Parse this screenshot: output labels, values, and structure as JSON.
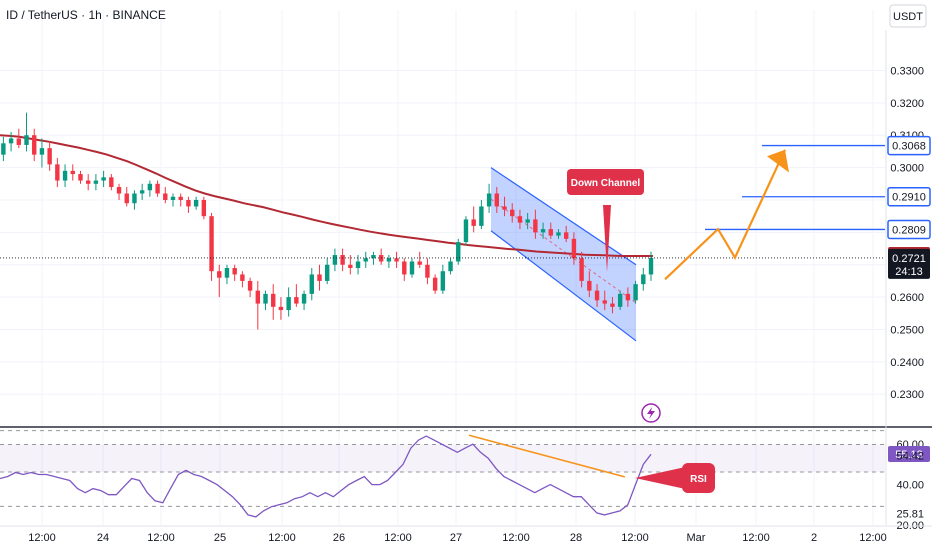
{
  "header": {
    "title": "ID / TetherUS · 1h · BINANCE",
    "currency": "USDT"
  },
  "colors": {
    "up": "#089981",
    "down": "#f23645",
    "ma": "#b22833",
    "channel_line": "#2962ff",
    "channel_fill": "#2962ff",
    "projection": "#f7931a",
    "level_line": "#2962ff",
    "rsi_line": "#7e57c2",
    "rsi_trend": "#f7931a",
    "annotation": "#e0314b"
  },
  "chart_data": [
    {
      "type": "candlestick",
      "title": "ID / TetherUS · 1h · BINANCE",
      "ylim": [
        0.2205,
        0.3425
      ],
      "y_ticks": [
        0.23,
        0.24,
        0.25,
        0.26,
        0.27,
        0.28,
        0.29,
        0.3,
        0.31,
        0.32,
        0.33
      ],
      "y_tick_labels": [
        "0.2300",
        "0.2400",
        "0.2500",
        "0.2600",
        "0.2700",
        "0.2800",
        "0.2900",
        "0.3000",
        "0.3100",
        "0.3200",
        "0.3300"
      ],
      "x_ticks": [
        "12:00",
        "24",
        "12:00",
        "25",
        "12:00",
        "26",
        "12:00",
        "27",
        "12:00",
        "28",
        "12:00",
        "Mar",
        "12:00",
        "2",
        "12:00"
      ],
      "grid": true,
      "ohlc": [
        [
          0.304,
          0.3095,
          0.302,
          0.3075
        ],
        [
          0.3075,
          0.311,
          0.305,
          0.309
        ],
        [
          0.309,
          0.312,
          0.306,
          0.307
        ],
        [
          0.307,
          0.317,
          0.305,
          0.31
        ],
        [
          0.31,
          0.312,
          0.302,
          0.304
        ],
        [
          0.304,
          0.309,
          0.3,
          0.306
        ],
        [
          0.306,
          0.308,
          0.299,
          0.301
        ],
        [
          0.301,
          0.303,
          0.294,
          0.296
        ],
        [
          0.296,
          0.301,
          0.294,
          0.299
        ],
        [
          0.299,
          0.301,
          0.296,
          0.298
        ],
        [
          0.298,
          0.299,
          0.295,
          0.296
        ],
        [
          0.296,
          0.298,
          0.293,
          0.295
        ],
        [
          0.295,
          0.298,
          0.293,
          0.296
        ],
        [
          0.296,
          0.299,
          0.294,
          0.297
        ],
        [
          0.297,
          0.298,
          0.293,
          0.294
        ],
        [
          0.294,
          0.295,
          0.29,
          0.292
        ],
        [
          0.292,
          0.294,
          0.288,
          0.289
        ],
        [
          0.289,
          0.293,
          0.287,
          0.292
        ],
        [
          0.292,
          0.295,
          0.29,
          0.293
        ],
        [
          0.293,
          0.296,
          0.291,
          0.295
        ],
        [
          0.295,
          0.296,
          0.291,
          0.292
        ],
        [
          0.292,
          0.294,
          0.289,
          0.29
        ],
        [
          0.29,
          0.292,
          0.288,
          0.291
        ],
        [
          0.291,
          0.292,
          0.288,
          0.29
        ],
        [
          0.29,
          0.291,
          0.286,
          0.288
        ],
        [
          0.288,
          0.291,
          0.287,
          0.29
        ],
        [
          0.29,
          0.291,
          0.284,
          0.285
        ],
        [
          0.285,
          0.286,
          0.265,
          0.268
        ],
        [
          0.268,
          0.27,
          0.26,
          0.266
        ],
        [
          0.266,
          0.27,
          0.264,
          0.269
        ],
        [
          0.269,
          0.27,
          0.265,
          0.267
        ],
        [
          0.267,
          0.268,
          0.263,
          0.265
        ],
        [
          0.265,
          0.266,
          0.26,
          0.262
        ],
        [
          0.262,
          0.265,
          0.25,
          0.258
        ],
        [
          0.258,
          0.262,
          0.256,
          0.261
        ],
        [
          0.261,
          0.264,
          0.253,
          0.257
        ],
        [
          0.257,
          0.26,
          0.253,
          0.256
        ],
        [
          0.256,
          0.263,
          0.254,
          0.26
        ],
        [
          0.26,
          0.264,
          0.257,
          0.258
        ],
        [
          0.258,
          0.262,
          0.256,
          0.261
        ],
        [
          0.261,
          0.269,
          0.259,
          0.267
        ],
        [
          0.267,
          0.27,
          0.262,
          0.265
        ],
        [
          0.265,
          0.272,
          0.264,
          0.27
        ],
        [
          0.27,
          0.275,
          0.268,
          0.273
        ],
        [
          0.273,
          0.275,
          0.268,
          0.27
        ],
        [
          0.27,
          0.273,
          0.267,
          0.269
        ],
        [
          0.269,
          0.273,
          0.267,
          0.271
        ],
        [
          0.271,
          0.274,
          0.269,
          0.272
        ],
        [
          0.272,
          0.274,
          0.27,
          0.273
        ],
        [
          0.273,
          0.275,
          0.27,
          0.271
        ],
        [
          0.271,
          0.273,
          0.269,
          0.272
        ],
        [
          0.272,
          0.274,
          0.269,
          0.271
        ],
        [
          0.271,
          0.272,
          0.265,
          0.267
        ],
        [
          0.267,
          0.272,
          0.266,
          0.271
        ],
        [
          0.271,
          0.274,
          0.269,
          0.27
        ],
        [
          0.27,
          0.272,
          0.264,
          0.266
        ],
        [
          0.266,
          0.267,
          0.261,
          0.262
        ],
        [
          0.262,
          0.27,
          0.261,
          0.268
        ],
        [
          0.268,
          0.272,
          0.267,
          0.271
        ],
        [
          0.271,
          0.278,
          0.27,
          0.277
        ],
        [
          0.277,
          0.285,
          0.276,
          0.284
        ],
        [
          0.284,
          0.288,
          0.28,
          0.282
        ],
        [
          0.282,
          0.29,
          0.281,
          0.288
        ],
        [
          0.288,
          0.295,
          0.286,
          0.292
        ],
        [
          0.292,
          0.294,
          0.286,
          0.288
        ],
        [
          0.288,
          0.291,
          0.285,
          0.287
        ],
        [
          0.287,
          0.289,
          0.283,
          0.285
        ],
        [
          0.285,
          0.287,
          0.281,
          0.283
        ],
        [
          0.283,
          0.286,
          0.281,
          0.284
        ],
        [
          0.284,
          0.287,
          0.278,
          0.28
        ],
        [
          0.28,
          0.283,
          0.278,
          0.281
        ],
        [
          0.281,
          0.283,
          0.278,
          0.279
        ],
        [
          0.279,
          0.281,
          0.278,
          0.28
        ],
        [
          0.28,
          0.282,
          0.277,
          0.278
        ],
        [
          0.278,
          0.28,
          0.27,
          0.272
        ],
        [
          0.272,
          0.274,
          0.263,
          0.265
        ],
        [
          0.265,
          0.268,
          0.26,
          0.262
        ],
        [
          0.262,
          0.264,
          0.257,
          0.259
        ],
        [
          0.259,
          0.262,
          0.256,
          0.258
        ],
        [
          0.258,
          0.26,
          0.255,
          0.257
        ],
        [
          0.257,
          0.262,
          0.256,
          0.261
        ],
        [
          0.261,
          0.263,
          0.257,
          0.259
        ],
        [
          0.259,
          0.265,
          0.258,
          0.264
        ],
        [
          0.264,
          0.269,
          0.262,
          0.267
        ],
        [
          0.267,
          0.274,
          0.265,
          0.2721
        ]
      ],
      "ma_series": {
        "name": "",
        "values": [
          0.31,
          0.3098,
          0.3095,
          0.309,
          0.3085,
          0.308,
          0.3074,
          0.3068,
          0.3062,
          0.3055,
          0.3048,
          0.304,
          0.303,
          0.302,
          0.3008,
          0.2995,
          0.2982,
          0.2968,
          0.2955,
          0.2942,
          0.293,
          0.292,
          0.2912,
          0.2905,
          0.2898,
          0.289,
          0.2884,
          0.2878,
          0.287,
          0.2862,
          0.2855,
          0.2848,
          0.284,
          0.2833,
          0.2826,
          0.282,
          0.2814,
          0.2808,
          0.2802,
          0.2797,
          0.2792,
          0.2788,
          0.2784,
          0.278,
          0.2776,
          0.2772,
          0.2768,
          0.2765,
          0.2761,
          0.2758,
          0.2755,
          0.2752,
          0.2749,
          0.2747,
          0.2744,
          0.2741,
          0.2739,
          0.2737,
          0.2735,
          0.2733,
          0.2731,
          0.273,
          0.2729,
          0.2728,
          0.2727,
          0.2727,
          0.2727,
          0.2727
        ]
      },
      "levels": [
        {
          "value": 0.3068,
          "label": "0.3068"
        },
        {
          "value": 0.291,
          "label": "0.2910"
        },
        {
          "value": 0.2809,
          "label": "0.2809"
        }
      ],
      "price_tags": [
        {
          "value": 0.2727,
          "label": "0.2727",
          "kind": "ma"
        },
        {
          "value": 0.2721,
          "label": "0.2721",
          "sub": "24:13",
          "kind": "last"
        }
      ],
      "channel": {
        "upper": [
          [
            0.2999,
            0.3
          ],
          [
            0.3,
            0.27
          ]
        ],
        "lower": [
          [
            0.2999,
            0.2805
          ],
          [
            0.3,
            0.2465
          ]
        ]
      },
      "annotations": [
        {
          "text": "Down Channel",
          "value": 0.27
        }
      ]
    },
    {
      "type": "line",
      "title": "",
      "ylim": [
        20,
        68
      ],
      "y_tick_labels": [
        "60.00",
        "55.13",
        "54.42",
        "40.00",
        "25.81",
        "20.00"
      ],
      "bands": [
        66.69,
        59.85,
        46.2,
        29.2
      ],
      "rsi": [
        43,
        44,
        46,
        45,
        46,
        45,
        45,
        44,
        43,
        42,
        38,
        36,
        38,
        37,
        35,
        35,
        39,
        43,
        42,
        36,
        32,
        31,
        38,
        45,
        47,
        45,
        44,
        42,
        40,
        37,
        34,
        30,
        25,
        24,
        27,
        29,
        30,
        31,
        33,
        34,
        36,
        34,
        36,
        34,
        37,
        40,
        42,
        44,
        40,
        40,
        42,
        46,
        50,
        58,
        62,
        64,
        62,
        60,
        58,
        56,
        58,
        60,
        56,
        53,
        48,
        44,
        42,
        40,
        38,
        36,
        38,
        40,
        38,
        36,
        34,
        34,
        30,
        26,
        25,
        26,
        27,
        30,
        40,
        50,
        55
      ],
      "trendline": [
        [
          0.53,
          64.42
        ],
        [
          0.706,
          43.8
        ]
      ],
      "series_value_tags": [
        {
          "value": 55.13,
          "label": "55.13",
          "kind": "rsi"
        },
        {
          "value": 54.42,
          "label": "54.42",
          "kind": "ma"
        }
      ],
      "annotations": [
        {
          "text": "RSI"
        }
      ]
    }
  ]
}
